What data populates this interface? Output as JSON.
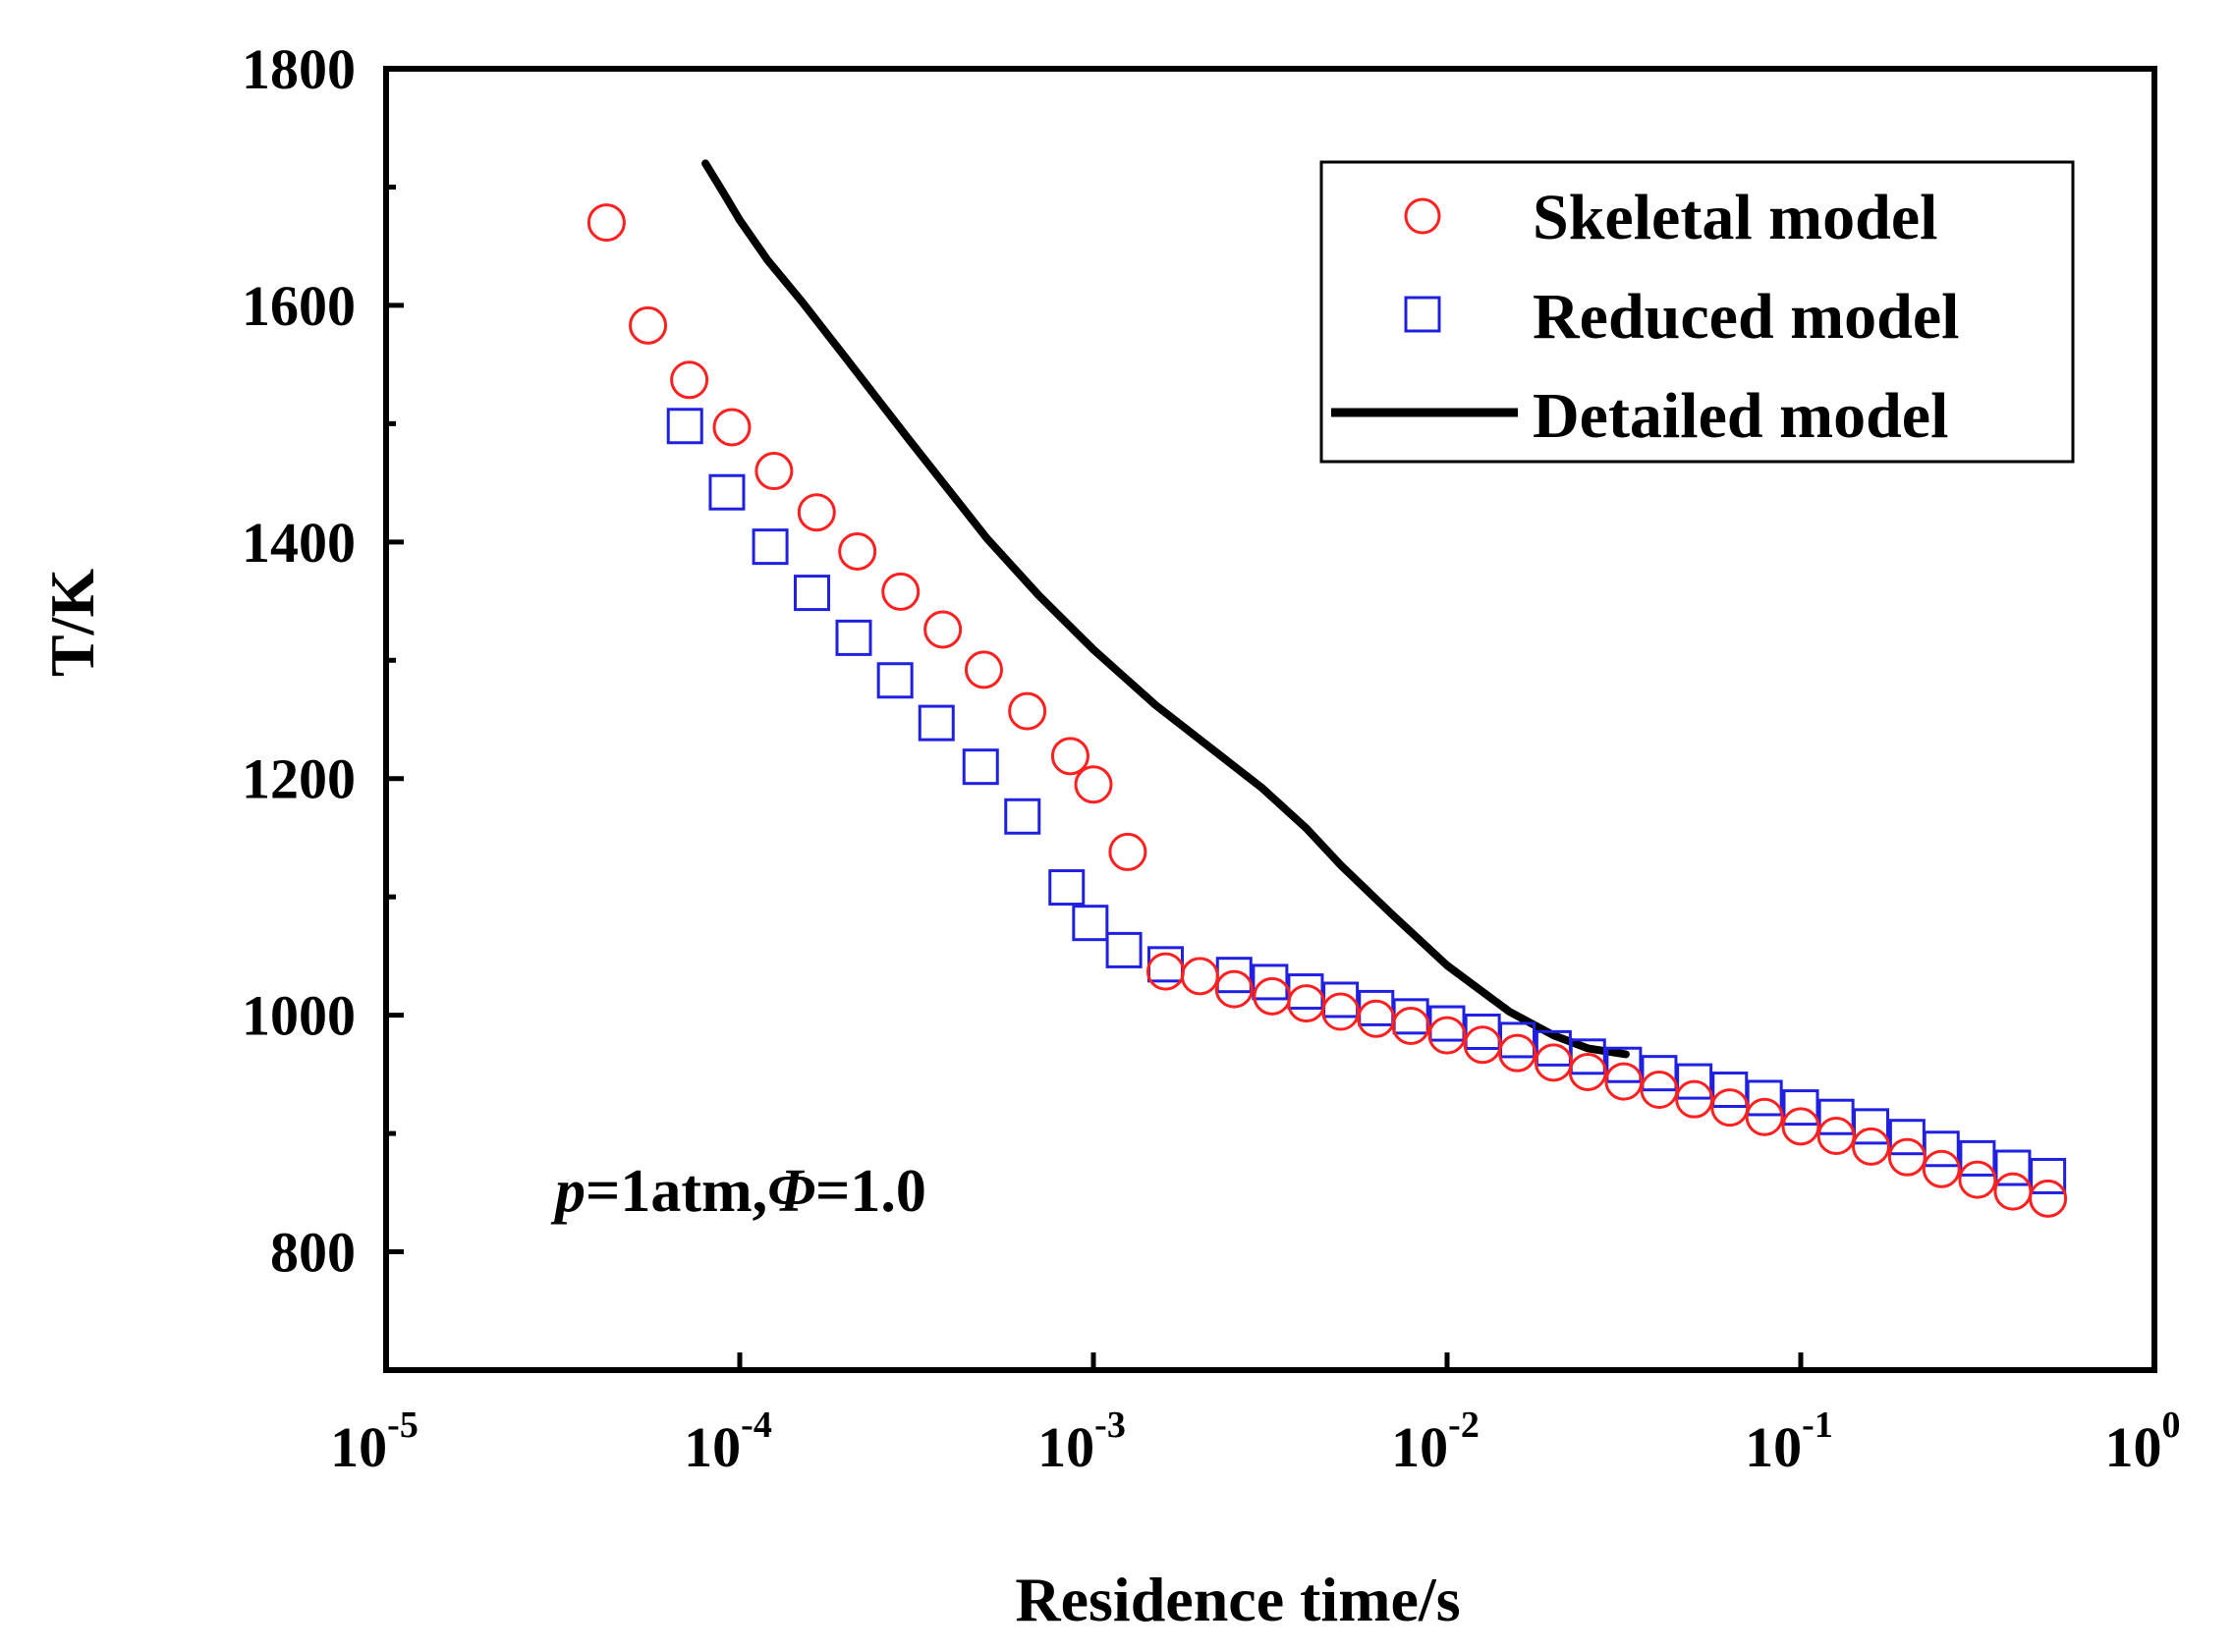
{
  "chart_data": {
    "type": "scatter",
    "title": "",
    "xlabel": "Residence time/s",
    "ylabel": "T/K",
    "xscale": "log",
    "xlim_exp": [
      -5,
      0
    ],
    "ylim": [
      700,
      1800
    ],
    "x_ticks": [
      {
        "base": "10",
        "exp": "-5"
      },
      {
        "base": "10",
        "exp": "-4"
      },
      {
        "base": "10",
        "exp": "-3"
      },
      {
        "base": "10",
        "exp": "-2"
      },
      {
        "base": "10",
        "exp": "-1"
      },
      {
        "base": "10",
        "exp": "0"
      }
    ],
    "y_ticks": [
      "800",
      "1000",
      "1200",
      "1400",
      "1600",
      "1800"
    ],
    "annotation": {
      "p": "p",
      "part1": "=1atm,",
      "phi": "Φ",
      "part2": "=1.0"
    },
    "legend": {
      "position": "top-right",
      "entries": [
        "Skeletal model",
        "Reduced model",
        "Detailed model"
      ]
    },
    "colors": {
      "skeletal": "#ff2020",
      "reduced": "#2020e0",
      "detailed": "#000000"
    },
    "series": [
      {
        "name": "Skeletal model",
        "marker": "circle",
        "x": [
          4.2e-05,
          5.5e-05,
          7.2e-05,
          9.5e-05,
          0.000125,
          0.000165,
          0.000215,
          0.000285,
          0.000375,
          0.00049,
          0.00065,
          0.00086,
          0.001,
          0.00125,
          0.0016,
          0.002,
          0.0025,
          0.0032,
          0.004,
          0.005,
          0.0063,
          0.0079,
          0.01,
          0.0126,
          0.0158,
          0.02,
          0.025,
          0.0316,
          0.0398,
          0.05,
          0.063,
          0.079,
          0.1,
          0.126,
          0.158,
          0.2,
          0.25,
          0.316,
          0.398,
          0.5
        ],
        "y": [
          1670,
          1583,
          1537,
          1497,
          1460,
          1425,
          1392,
          1358,
          1326,
          1292,
          1257,
          1219,
          1195,
          1138,
          1037,
          1033,
          1022,
          1016,
          1010,
          1003,
          997,
          991,
          983,
          975,
          968,
          960,
          952,
          944,
          937,
          929,
          922,
          914,
          906,
          898,
          889,
          880,
          870,
          861,
          851,
          845
        ]
      },
      {
        "name": "Reduced model",
        "marker": "square",
        "x": [
          7e-05,
          9.2e-05,
          0.000122,
          0.00016,
          0.00021,
          0.000275,
          0.00036,
          0.00048,
          0.00063,
          0.00084,
          0.00098,
          0.00122,
          0.0016,
          0.0025,
          0.00316,
          0.00398,
          0.005,
          0.0063,
          0.0079,
          0.01,
          0.0126,
          0.0158,
          0.02,
          0.025,
          0.0316,
          0.0398,
          0.05,
          0.063,
          0.079,
          0.1,
          0.126,
          0.158,
          0.2,
          0.25,
          0.316,
          0.398,
          0.5
        ],
        "y": [
          1498,
          1442,
          1396,
          1357,
          1319,
          1283,
          1247,
          1210,
          1168,
          1108,
          1078,
          1055,
          1043,
          1034,
          1028,
          1020,
          1013,
          1006,
          999,
          993,
          986,
          979,
          972,
          965,
          958,
          951,
          944,
          937,
          930,
          922,
          914,
          906,
          897,
          887,
          879,
          871,
          864
        ]
      },
      {
        "name": "Detailed model",
        "marker": "line",
        "x": [
          8e-05,
          9e-05,
          0.0001,
          0.00012,
          0.00015,
          0.0002,
          0.0003,
          0.0005,
          0.0007,
          0.001,
          0.0015,
          0.002,
          0.003,
          0.004,
          0.005,
          0.007,
          0.01,
          0.015,
          0.02,
          0.025,
          0.032
        ],
        "y": [
          1720,
          1695,
          1672,
          1638,
          1603,
          1555,
          1487,
          1403,
          1355,
          1309,
          1262,
          1233,
          1192,
          1158,
          1127,
          1085,
          1042,
          1003,
          983,
          972,
          967
        ]
      }
    ]
  }
}
